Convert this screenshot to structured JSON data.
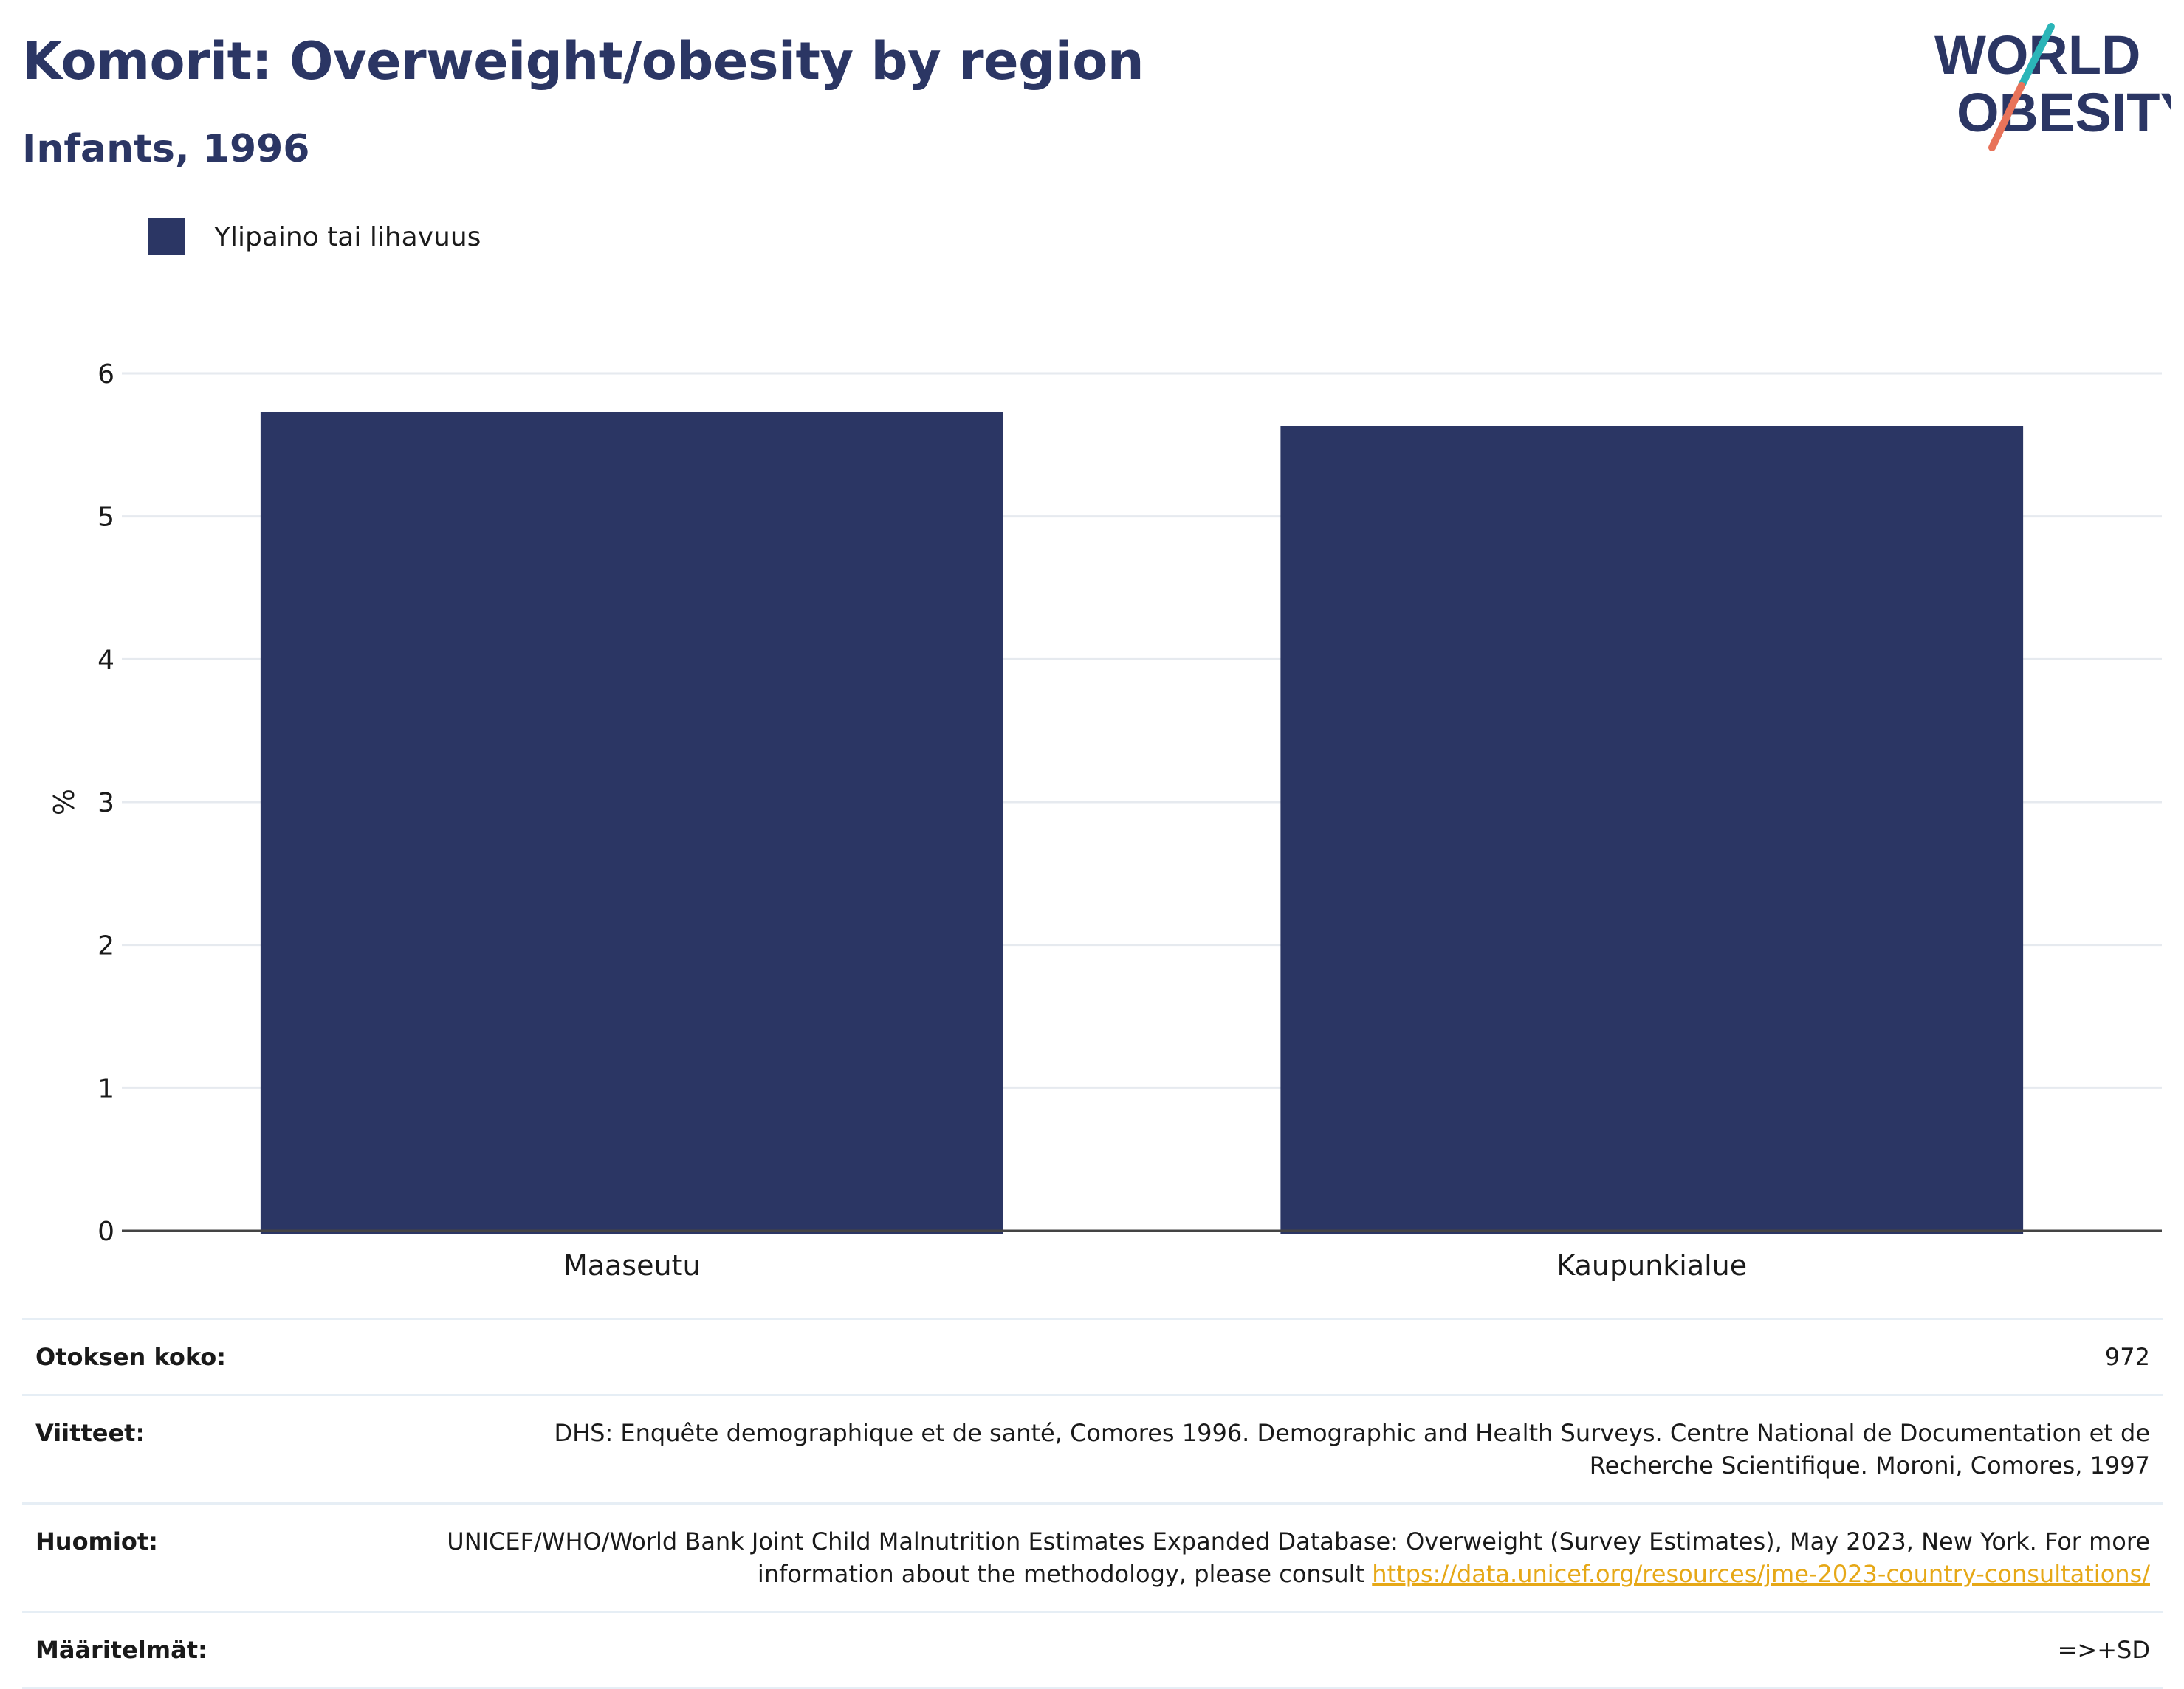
{
  "title": "Komorit: Overweight/obesity by region",
  "subtitle": "Infants, 1996",
  "logo": {
    "line1": "WORLD",
    "line2": "OBESITY",
    "colors": {
      "text": "#2b3664",
      "slash_top": "#2bb5b8",
      "slash_bottom": "#e8735a"
    }
  },
  "legend": {
    "label": "Ylipaino tai lihavuus",
    "color": "#2b3664"
  },
  "chart_data": {
    "type": "bar",
    "categories": [
      "Maaseutu",
      "Kaupunkialue"
    ],
    "series": [
      {
        "name": "Ylipaino tai lihavuus",
        "values": [
          5.73,
          5.63
        ],
        "color": "#2b3664"
      }
    ],
    "ylabel": "%",
    "xlabel": "",
    "ylim": [
      0,
      6
    ],
    "yticks": [
      0,
      1,
      2,
      3,
      4,
      5,
      6
    ],
    "grid": true,
    "legend_position": "top-left"
  },
  "info": {
    "sample_size": {
      "label": "Otoksen koko:",
      "value": "972"
    },
    "references": {
      "label": "Viitteet:",
      "value": "DHS: Enquête demographique et de santé, Comores 1996. Demographic and Health Surveys. Centre National de Documentation et de Recherche Scientifique. Moroni, Comores, 1997"
    },
    "notes": {
      "label": "Huomiot:",
      "value": "UNICEF/WHO/World Bank Joint Child Malnutrition Estimates Expanded Database: Overweight (Survey Estimates), May 2023, New York. For more information about the methodology, please consult ",
      "link": "https://data.unicef.org/resources/jme-2023-country-consultations/"
    },
    "definitions": {
      "label": "Määritelmät:",
      "value": "=>+SD"
    }
  }
}
